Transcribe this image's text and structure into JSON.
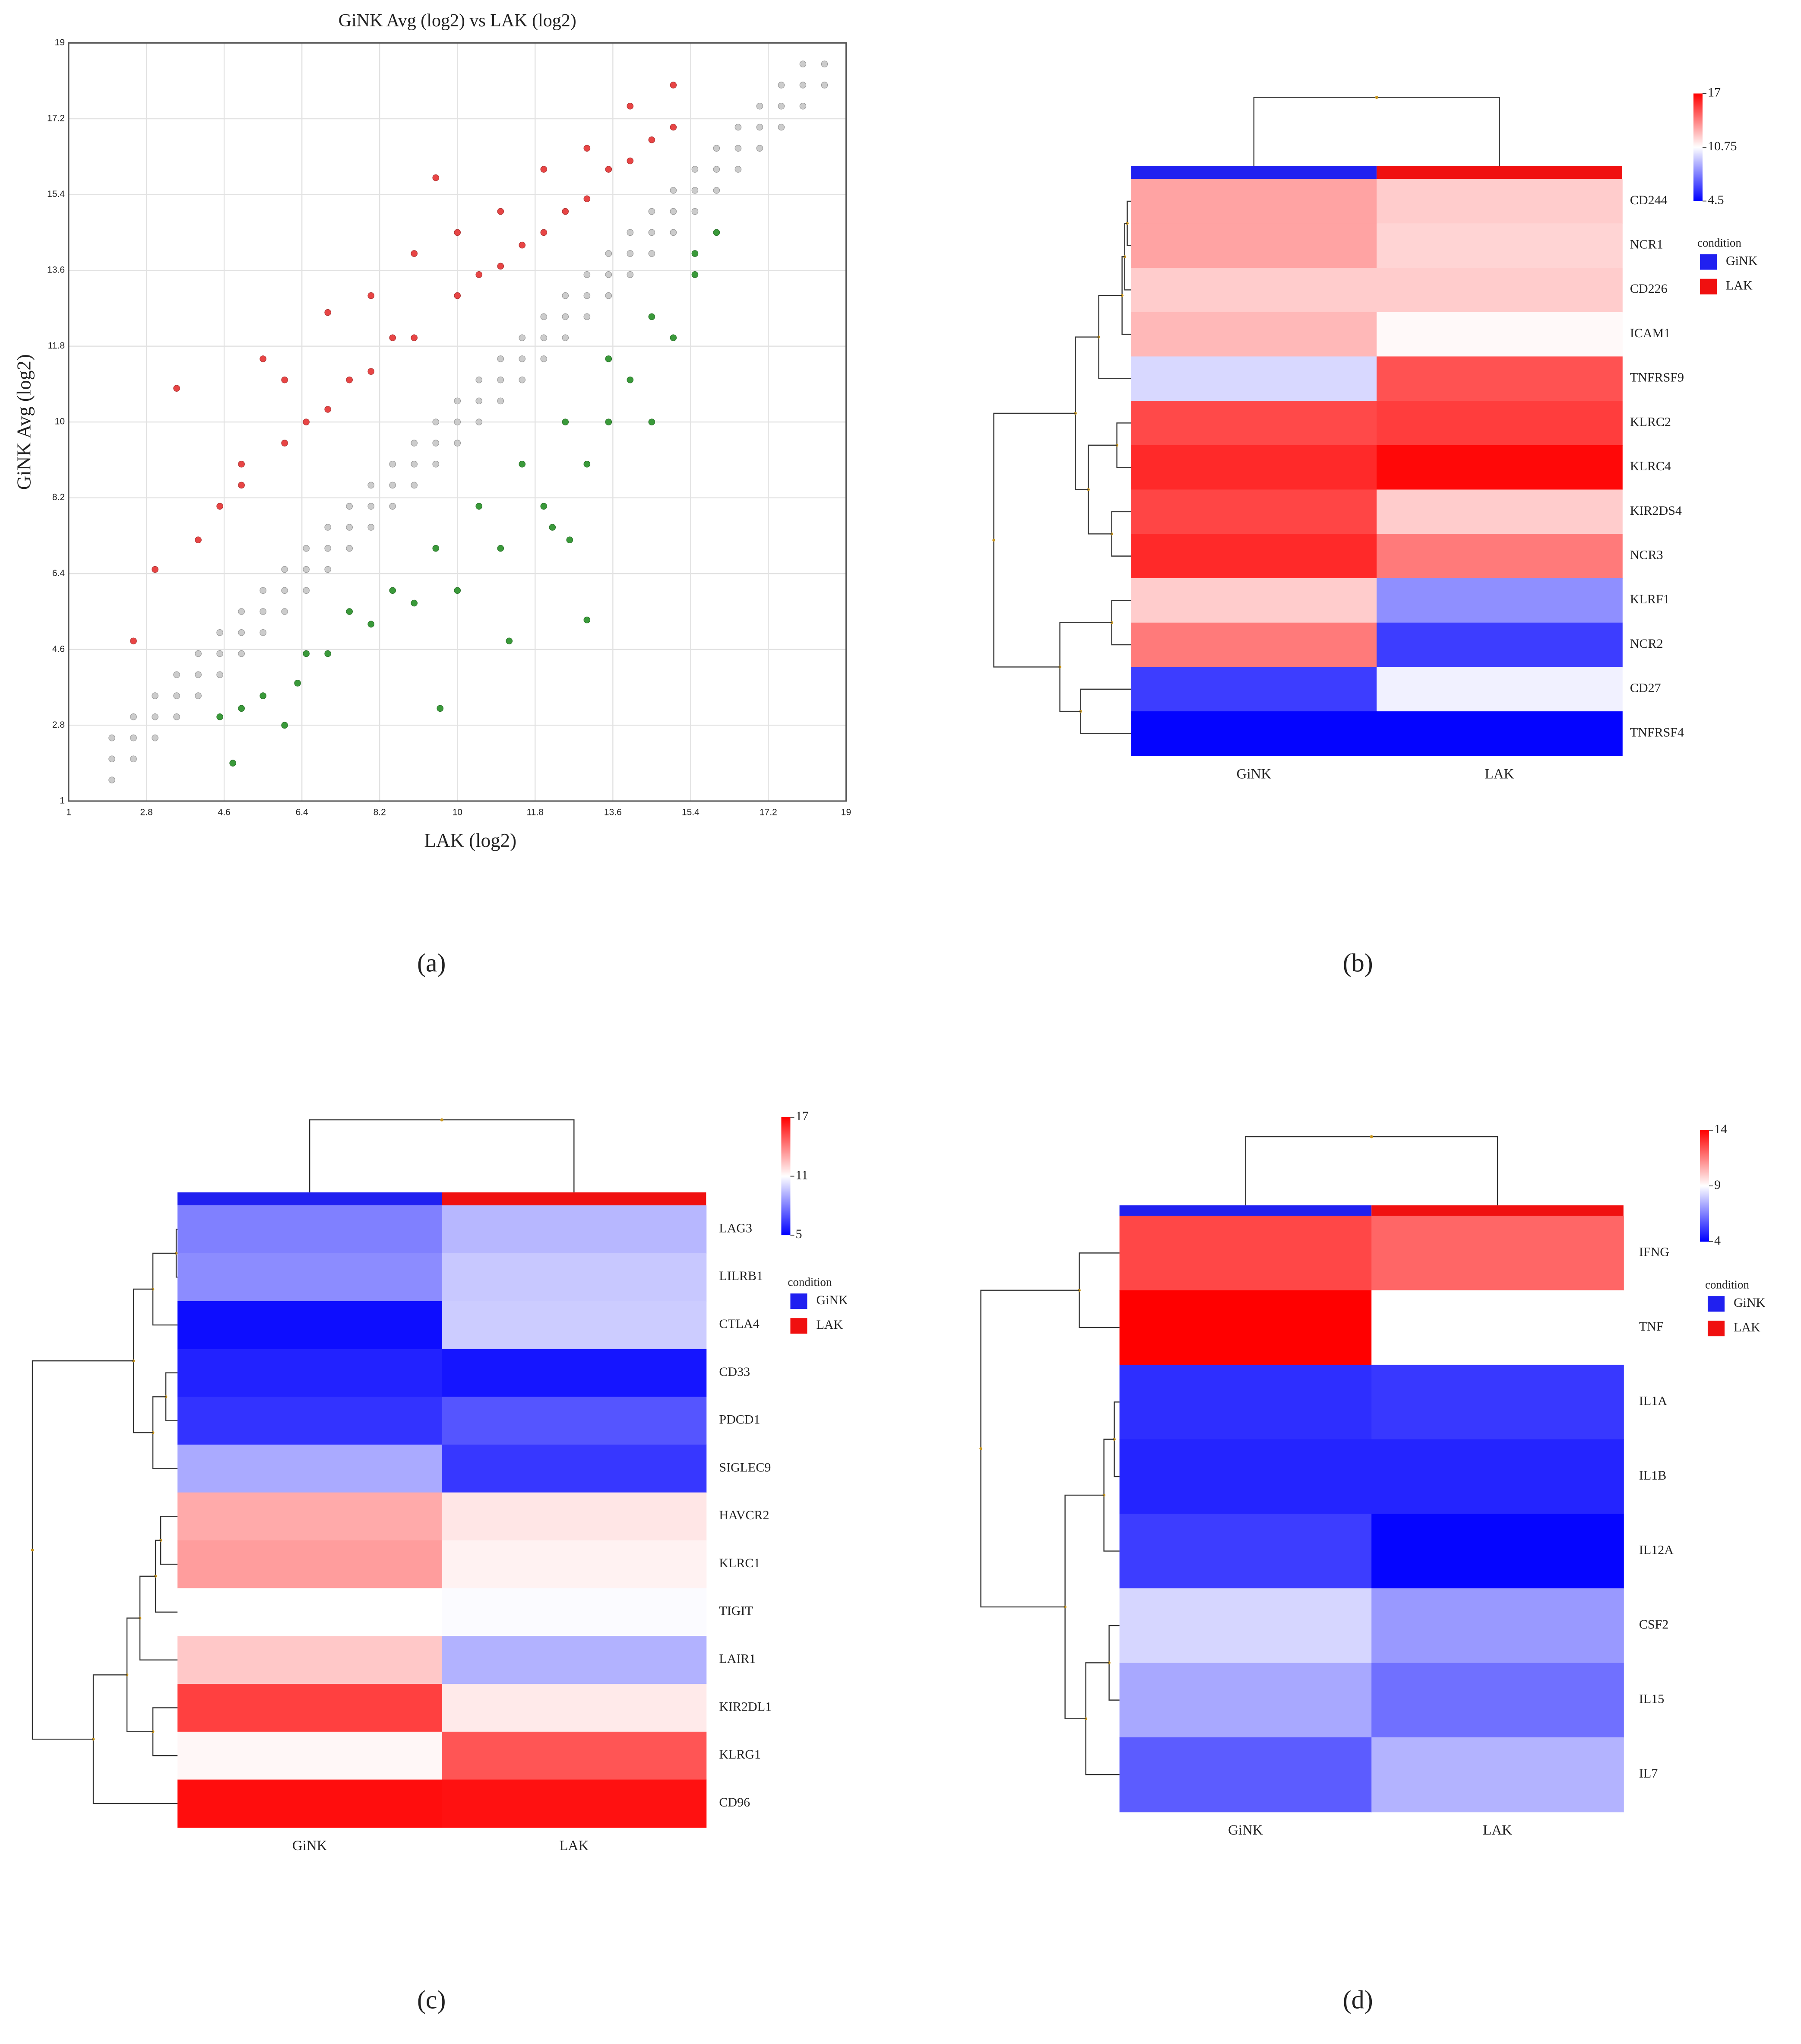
{
  "chart_data": [
    {
      "type": "scatter",
      "panel_label": "(a)",
      "title": "GiNK Avg (log2) vs LAK (log2)",
      "x_label": "LAK (log2)",
      "y_label": "GiNK Avg (log2)",
      "xlim": [
        1,
        19
      ],
      "ylim": [
        1,
        19
      ],
      "xticks": [
        1,
        2.8,
        4.6,
        6.4,
        8.2,
        10,
        11.8,
        13.6,
        15.4,
        17.2,
        19
      ],
      "yticks": [
        1,
        2.8,
        4.6,
        6.4,
        8.2,
        10,
        11.8,
        13.6,
        15.4,
        17.2,
        19
      ],
      "grid": true,
      "series": [
        {
          "color": "#cccccc",
          "x": [
            2,
            2.5,
            3,
            3.5,
            4,
            4.5,
            5,
            5.5,
            6,
            6.5,
            7,
            7.5,
            8,
            8.5,
            9,
            9.5,
            10,
            10.5,
            11,
            11.5,
            12,
            12.5,
            13,
            13.5,
            14,
            14.5,
            15,
            15.5,
            16,
            16.5,
            17,
            17.5,
            18,
            18.5
          ],
          "values": [
            1.5,
            2,
            2.5,
            3,
            3.5,
            4,
            4.5,
            5,
            5.5,
            6,
            6.5,
            7,
            7.5,
            8,
            8.5,
            9,
            9.5,
            10,
            10.5,
            11,
            11.5,
            12,
            12.5,
            13,
            13.5,
            14,
            14.5,
            15,
            15.5,
            16,
            16.5,
            17,
            17.5,
            18
          ]
        },
        {
          "color": "#cccccc",
          "x": [
            2,
            2.5,
            3,
            3.5,
            4,
            4.5,
            5,
            5.5,
            6,
            6.5,
            7,
            7.5,
            8,
            8.5,
            9,
            9.5,
            10,
            10.5,
            11,
            11.5,
            12,
            12.5,
            13,
            13.5,
            14,
            14.5,
            15,
            15.5,
            16,
            16.5,
            17,
            17.5,
            18,
            18.5
          ],
          "values": [
            2,
            2.5,
            3,
            3.5,
            4,
            4.5,
            5,
            5.5,
            6,
            6.5,
            7,
            7.5,
            8,
            8.5,
            9,
            9.5,
            10,
            10.5,
            11,
            11.5,
            12,
            12.5,
            13,
            13.5,
            14,
            14.5,
            15,
            15.5,
            16,
            16.5,
            17,
            17.5,
            18,
            18.5
          ]
        },
        {
          "color": "#cccccc",
          "x": [
            2,
            2.5,
            3,
            3.5,
            4,
            4.5,
            5,
            5.5,
            6,
            6.5,
            7,
            7.5,
            8,
            8.5,
            9,
            9.5,
            10,
            10.5,
            11,
            11.5,
            12,
            12.5,
            13,
            13.5,
            14,
            14.5,
            15,
            15.5,
            16,
            16.5,
            17,
            17.5,
            18
          ],
          "values": [
            2.5,
            3,
            3.5,
            4,
            4.5,
            5,
            5.5,
            6,
            6.5,
            7,
            7.5,
            8,
            8.5,
            9,
            9.5,
            10,
            10.5,
            11,
            11.5,
            12,
            12.5,
            13,
            13.5,
            14,
            14.5,
            15,
            15.5,
            16,
            16.5,
            17,
            17.5,
            18,
            18.5
          ]
        },
        {
          "color": "#e84545",
          "x": [
            2.5,
            3,
            3.5,
            4,
            4.5,
            5,
            5,
            5.5,
            6,
            6,
            6.5,
            7,
            7,
            7.5,
            8,
            8,
            8.5,
            9,
            9,
            9.5,
            10,
            10,
            10.5,
            11,
            11,
            11.5,
            12,
            12,
            12.5,
            13,
            13,
            13.5,
            14,
            14,
            14.5,
            15,
            15
          ],
          "values": [
            4.8,
            6.5,
            10.8,
            7.2,
            8,
            9,
            8.5,
            11.5,
            11,
            9.5,
            10,
            12.6,
            10.3,
            11,
            13,
            11.2,
            12,
            14,
            12,
            15.8,
            14.5,
            13,
            13.5,
            15,
            13.7,
            14.2,
            16,
            14.5,
            15,
            16.5,
            15.3,
            16,
            17.5,
            16.2,
            16.7,
            18,
            17
          ]
        },
        {
          "color": "#3a9a3a",
          "x": [
            4.5,
            4.8,
            5,
            5.5,
            6,
            6.3,
            6.5,
            7,
            7.5,
            8,
            8.5,
            9,
            9.5,
            9.6,
            10,
            10.5,
            11,
            11.2,
            11.5,
            12,
            12.2,
            12.5,
            12.6,
            13,
            13,
            13.5,
            13.5,
            14,
            14.5,
            14.5,
            15,
            15.5,
            15.5,
            16
          ],
          "values": [
            3,
            1.9,
            3.2,
            3.5,
            2.8,
            3.8,
            4.5,
            4.5,
            5.5,
            5.2,
            6,
            5.7,
            7,
            3.2,
            6,
            8,
            7,
            4.8,
            9,
            8,
            7.5,
            10,
            7.2,
            5.3,
            9,
            10,
            11.5,
            11,
            10,
            12.5,
            12,
            13.5,
            14,
            14.5
          ]
        }
      ]
    },
    {
      "type": "heatmap",
      "panel_label": "(b)",
      "columns": [
        "GiNK",
        "LAK"
      ],
      "rows": [
        "CD244",
        "NCR1",
        "CD226",
        "ICAM1",
        "TNFRSF9",
        "KLRC2",
        "KLRC4",
        "KIR2DS4",
        "NCR3",
        "KLRF1",
        "NCR2",
        "CD27",
        "TNFRSF4"
      ],
      "values": [
        [
          13,
          12
        ],
        [
          13,
          11.8
        ],
        [
          12,
          12
        ],
        [
          12.5,
          10.9
        ],
        [
          9.8,
          15
        ],
        [
          15.2,
          15.5
        ],
        [
          16,
          16.8
        ],
        [
          15.3,
          12
        ],
        [
          16,
          14
        ],
        [
          12,
          8
        ],
        [
          14,
          6
        ],
        [
          6,
          10.4
        ],
        [
          4.6,
          4.6
        ]
      ],
      "clim": [
        4.5,
        17
      ],
      "cticks": [
        17,
        10.75,
        4.5
      ],
      "colors": [
        "#0000ff",
        "#ffffff",
        "#ff0000"
      ],
      "legend_title": "condition",
      "legend": [
        {
          "name": "GiNK",
          "color": "#2020f0"
        },
        {
          "name": "LAK",
          "color": "#f01010"
        }
      ]
    },
    {
      "type": "heatmap",
      "panel_label": "(c)",
      "columns": [
        "GiNK",
        "LAK"
      ],
      "rows": [
        "LAG3",
        "LILRB1",
        "CTLA4",
        "CD33",
        "PDCD1",
        "SIGLEC9",
        "HAVCR2",
        "KLRC1",
        "TIGIT",
        "LAIR1",
        "KIR2DL1",
        "KLRG1",
        "CD96"
      ],
      "values": [
        [
          8,
          9.3
        ],
        [
          8.3,
          9.7
        ],
        [
          5.3,
          9.8
        ],
        [
          5.8,
          5.5
        ],
        [
          6.2,
          7
        ],
        [
          9,
          6.3
        ],
        [
          13,
          11.6
        ],
        [
          13.3,
          11.3
        ],
        [
          11,
          10.9
        ],
        [
          12.3,
          9.2
        ],
        [
          15.5,
          11.5
        ],
        [
          11.2,
          15
        ],
        [
          16.7,
          16.6
        ]
      ],
      "clim": [
        5,
        17
      ],
      "cticks": [
        17,
        11,
        5
      ],
      "colors": [
        "#0000ff",
        "#ffffff",
        "#ff0000"
      ],
      "legend_title": "condition",
      "legend": [
        {
          "name": "GiNK",
          "color": "#2020f0"
        },
        {
          "name": "LAK",
          "color": "#f01010"
        }
      ]
    },
    {
      "type": "heatmap",
      "panel_label": "(d)",
      "columns": [
        "GiNK",
        "LAK"
      ],
      "rows": [
        "IFNG",
        "TNF",
        "IL1A",
        "IL1B",
        "IL12A",
        "CSF2",
        "IL15",
        "IL7"
      ],
      "values": [
        [
          12.6,
          12
        ],
        [
          14,
          9
        ],
        [
          4.9,
          5.1
        ],
        [
          4.7,
          4.7
        ],
        [
          5.2,
          4.1
        ],
        [
          8.2,
          7
        ],
        [
          7.3,
          6.2
        ],
        [
          5.8,
          7.5
        ]
      ],
      "clim": [
        4,
        14
      ],
      "cticks": [
        14,
        9,
        4
      ],
      "colors": [
        "#0000ff",
        "#ffffff",
        "#ff0000"
      ],
      "legend_title": "condition",
      "legend": [
        {
          "name": "GiNK",
          "color": "#2020f0"
        },
        {
          "name": "LAK",
          "color": "#f01010"
        }
      ]
    }
  ]
}
